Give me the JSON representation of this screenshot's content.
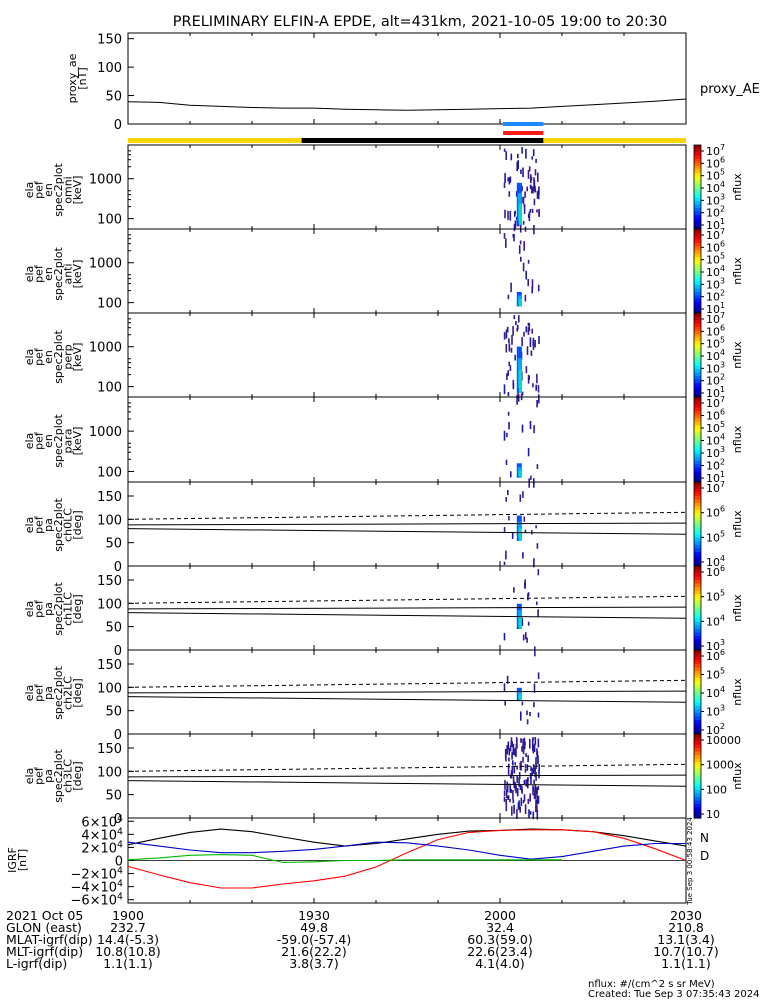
{
  "title": "PRELIMINARY ELFIN-A EPDE, alt=431km, 2021-10-05 19:00 to 20:30",
  "chart_data": [
    {
      "type": "line",
      "panel": "proxy_ae",
      "ylabel": [
        "proxy_ae",
        "[nT]"
      ],
      "legend": "proxy_AE",
      "ylim": [
        0,
        160
      ],
      "yticks": [
        "150",
        "100",
        "50",
        "0"
      ],
      "x": [
        0,
        5,
        10,
        15,
        20,
        25,
        30,
        35,
        40,
        45,
        50,
        55,
        60,
        65,
        70,
        75,
        80,
        85,
        90
      ],
      "values": [
        39,
        38,
        33,
        31,
        29,
        28,
        28,
        26,
        25,
        24,
        25,
        26,
        27,
        28,
        31,
        34,
        37,
        40,
        44
      ]
    },
    {
      "type": "bar",
      "panel": "status_bars",
      "segments": [
        {
          "from": 0,
          "to": 28,
          "color": "#ffd700"
        },
        {
          "from": 28,
          "to": 67,
          "color": "#000000"
        },
        {
          "from": 67,
          "to": 90,
          "color": "#ffd700"
        }
      ],
      "markers": [
        {
          "from": 60.5,
          "to": 67,
          "color": "#1e88ff"
        },
        {
          "from": 60.5,
          "to": 67,
          "color": "#ff1a1a"
        }
      ]
    },
    {
      "type": "heatmap",
      "panel": "omni",
      "ylabel": [
        "ela",
        "pef",
        "en",
        "spec2plot",
        "omni",
        "[keV]"
      ],
      "yscale": "log",
      "ylim": [
        55,
        7000
      ],
      "yticks": [
        {
          "v": 1000,
          "label": "1000"
        },
        {
          "v": 100,
          "label": "100"
        }
      ],
      "colorbar": {
        "label": "nflux",
        "scale": "log",
        "ticks": [
          "107",
          "106",
          "105",
          "104",
          "103",
          "102",
          "101"
        ],
        "superscript": true
      }
    },
    {
      "type": "heatmap",
      "panel": "anti",
      "ylabel": [
        "ela",
        "pef",
        "en",
        "spec2plot",
        "anti",
        "[keV]"
      ],
      "yscale": "log",
      "ylim": [
        55,
        7000
      ],
      "yticks": [
        {
          "v": 1000,
          "label": "1000"
        },
        {
          "v": 100,
          "label": "100"
        }
      ],
      "colorbar": {
        "label": "nflux",
        "scale": "log",
        "ticks": [
          "107",
          "106",
          "105",
          "104",
          "103",
          "102",
          "101"
        ],
        "superscript": true
      }
    },
    {
      "type": "heatmap",
      "panel": "perp",
      "ylabel": [
        "ela",
        "pef",
        "en",
        "spec2plot",
        "perp",
        "[keV]"
      ],
      "yscale": "log",
      "ylim": [
        55,
        7000
      ],
      "yticks": [
        {
          "v": 1000,
          "label": "1000"
        },
        {
          "v": 100,
          "label": "100"
        }
      ],
      "colorbar": {
        "label": "nflux",
        "scale": "log",
        "ticks": [
          "107",
          "106",
          "105",
          "104",
          "103",
          "102",
          "101"
        ],
        "superscript": true
      }
    },
    {
      "type": "heatmap",
      "panel": "para",
      "ylabel": [
        "ela",
        "pef",
        "en",
        "spec2plot",
        "para",
        "[keV]"
      ],
      "yscale": "log",
      "ylim": [
        55,
        7000
      ],
      "yticks": [
        {
          "v": 1000,
          "label": "1000"
        },
        {
          "v": 100,
          "label": "100"
        }
      ],
      "colorbar": {
        "label": "nflux",
        "scale": "log",
        "ticks": [
          "107",
          "106",
          "105",
          "104",
          "103",
          "102",
          "101"
        ],
        "superscript": true
      }
    },
    {
      "type": "heatmap",
      "panel": "ch0LC",
      "ylabel": [
        "ela",
        "pef",
        "pa",
        "spec2plot",
        "ch0LC",
        "[deg]"
      ],
      "ylim": [
        0,
        180
      ],
      "yticks": [
        {
          "v": 150,
          "label": "150"
        },
        {
          "v": 100,
          "label": "100"
        },
        {
          "v": 50,
          "label": "50"
        },
        {
          "v": 0,
          "label": "0"
        }
      ],
      "colorbar": {
        "label": "nflux",
        "scale": "log",
        "ticks": [
          "107",
          "106",
          "105",
          "104"
        ],
        "superscript": true
      }
    },
    {
      "type": "heatmap",
      "panel": "ch1LC",
      "ylabel": [
        "ela",
        "pef",
        "pa",
        "spec2plot",
        "ch1LC",
        "[deg]"
      ],
      "ylim": [
        0,
        180
      ],
      "yticks": [
        {
          "v": 150,
          "label": "150"
        },
        {
          "v": 100,
          "label": "100"
        },
        {
          "v": 50,
          "label": "50"
        },
        {
          "v": 0,
          "label": "0"
        }
      ],
      "colorbar": {
        "label": "nflux",
        "scale": "log",
        "ticks": [
          "106",
          "105",
          "104",
          "103"
        ],
        "superscript": true
      }
    },
    {
      "type": "heatmap",
      "panel": "ch2LC",
      "ylabel": [
        "ela",
        "pef",
        "pa",
        "spec2plot",
        "ch2LC",
        "[deg]"
      ],
      "ylim": [
        0,
        180
      ],
      "yticks": [
        {
          "v": 150,
          "label": "150"
        },
        {
          "v": 100,
          "label": "100"
        },
        {
          "v": 50,
          "label": "50"
        },
        {
          "v": 0,
          "label": "0"
        }
      ],
      "colorbar": {
        "label": "nflux",
        "scale": "log",
        "ticks": [
          "106",
          "105",
          "104",
          "103",
          "102"
        ],
        "superscript": true
      }
    },
    {
      "type": "heatmap",
      "panel": "ch3LC",
      "ylabel": [
        "ela",
        "pef",
        "pa",
        "spec2plot",
        "ch3LC",
        "[deg]"
      ],
      "ylim": [
        0,
        180
      ],
      "yticks": [
        {
          "v": 150,
          "label": "150"
        },
        {
          "v": 100,
          "label": "100"
        },
        {
          "v": 50,
          "label": "50"
        },
        {
          "v": 0,
          "label": "0"
        }
      ],
      "colorbar": {
        "label": "nflux",
        "scale": "log",
        "ticks": [
          "10000",
          "1000",
          "100",
          "10"
        ],
        "superscript": false
      }
    },
    {
      "type": "line",
      "panel": "igrf",
      "ylabel": [
        "IGRF",
        "[nT]"
      ],
      "ylim": [
        -65000,
        65000
      ],
      "yticks": [
        {
          "v": 60000,
          "m": "6",
          "e": "4",
          "neg": false
        },
        {
          "v": 40000,
          "m": "4",
          "e": "4",
          "neg": false
        },
        {
          "v": 20000,
          "m": "2",
          "e": "4",
          "neg": false
        },
        {
          "v": 0,
          "m": "0",
          "e": "",
          "neg": false
        },
        {
          "v": -20000,
          "m": "2",
          "e": "4",
          "neg": true
        },
        {
          "v": -40000,
          "m": "4",
          "e": "4",
          "neg": true
        },
        {
          "v": -60000,
          "m": "6",
          "e": "4",
          "neg": true
        }
      ],
      "legend": [
        {
          "label": "N",
          "color": "#0000cc"
        },
        {
          "label": "D",
          "color": "#ff0000"
        }
      ],
      "timestamp": "Tue Sep  3 00:58:43 2024",
      "series": [
        {
          "color": "#000000",
          "x": [
            0,
            5,
            10,
            15,
            20,
            25,
            30,
            35,
            40,
            45,
            50,
            55,
            60,
            65,
            70,
            75,
            80,
            85,
            90
          ],
          "values": [
            24000,
            34000,
            43000,
            48000,
            44000,
            36000,
            28000,
            22000,
            26000,
            33000,
            40000,
            45000,
            46000,
            48000,
            47000,
            44000,
            38000,
            30000,
            22000
          ]
        },
        {
          "color": "#ff0000",
          "x": [
            0,
            5,
            10,
            15,
            20,
            25,
            30,
            35,
            40,
            45,
            50,
            55,
            60,
            65,
            70,
            75,
            80,
            85,
            90
          ],
          "values": [
            -9000,
            -22000,
            -34000,
            -42000,
            -42000,
            -36000,
            -31000,
            -24000,
            -10000,
            12000,
            32000,
            43000,
            46000,
            47000,
            47000,
            44000,
            34000,
            18000,
            0
          ]
        },
        {
          "color": "#0000cc",
          "x": [
            0,
            5,
            10,
            15,
            20,
            25,
            30,
            35,
            40,
            45,
            50,
            55,
            60,
            65,
            70,
            75,
            80,
            85,
            90
          ],
          "values": [
            28000,
            22000,
            16000,
            12000,
            12000,
            14000,
            17000,
            22000,
            28000,
            27000,
            22000,
            16000,
            8000,
            2000,
            6000,
            14000,
            22000,
            26000,
            26000
          ]
        },
        {
          "color": "#00bb00",
          "x": [
            0,
            5,
            10,
            15,
            20,
            25,
            30,
            35,
            40,
            45,
            50,
            55,
            60,
            65,
            70
          ],
          "values": [
            1000,
            4000,
            8000,
            9000,
            8000,
            -3000,
            -2000,
            0,
            0,
            1000,
            1000,
            1000,
            1000,
            1000,
            1000
          ]
        }
      ]
    }
  ],
  "x_axis": {
    "ticks": [
      {
        "x": 0,
        "label": "1900"
      },
      {
        "x": 30,
        "label": "1930"
      },
      {
        "x": 60,
        "label": "2000"
      },
      {
        "x": 90,
        "label": "2030"
      }
    ],
    "rows": [
      {
        "label": "2021 Oct 05",
        "values": [
          "1900",
          "1930",
          "2000",
          "2030"
        ]
      },
      {
        "label": "GLON (east)",
        "values": [
          "232.7",
          "49.8",
          "32.4",
          "210.8"
        ]
      },
      {
        "label": "MLAT-igrf(dip)",
        "values": [
          "14.4(-5.3)",
          "-59.0(-57.4)",
          "60.3(59.0)",
          "13.1(3.4)"
        ]
      },
      {
        "label": "MLT-igrf(dip)",
        "values": [
          "10.8(10.8)",
          "21.6(22.2)",
          "22.6(23.4)",
          "10.7(10.7)"
        ]
      },
      {
        "label": "L-igrf(dip)",
        "values": [
          "1.1(1.1)",
          "3.8(3.7)",
          "4.1(4.0)",
          "1.1(1.1)"
        ]
      }
    ]
  },
  "footer": {
    "units": "nflux: #/(cm^2 s sr MeV)",
    "created": "Created: Tue Sep  3 07:35:43 2024"
  }
}
